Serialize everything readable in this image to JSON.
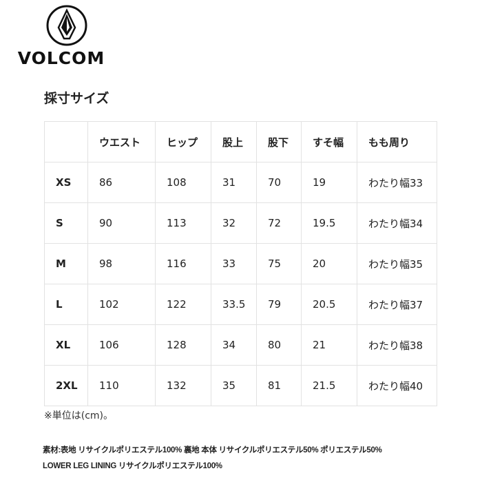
{
  "brand": {
    "name": "VOLCOM"
  },
  "title": "採寸サイズ",
  "table": {
    "headers": [
      "",
      "ウエスト",
      "ヒップ",
      "股上",
      "股下",
      "すそ幅",
      "もも周り"
    ],
    "rows": [
      [
        "XS",
        "86",
        "108",
        "31",
        "70",
        "19",
        "わたり幅33"
      ],
      [
        "S",
        "90",
        "113",
        "32",
        "72",
        "19.5",
        "わたり幅34"
      ],
      [
        "M",
        "98",
        "116",
        "33",
        "75",
        "20",
        "わたり幅35"
      ],
      [
        "L",
        "102",
        "122",
        "33.5",
        "79",
        "20.5",
        "わたり幅37"
      ],
      [
        "XL",
        "106",
        "128",
        "34",
        "80",
        "21",
        "わたり幅38"
      ],
      [
        "2XL",
        "110",
        "132",
        "35",
        "81",
        "21.5",
        "わたり幅40"
      ]
    ]
  },
  "note": "※単位は(cm)。",
  "material": {
    "line1": "素材:表地 リサイクルポリエステル100% 裏地 本体 リサイクルポリエステル50% ポリエステル50%",
    "line2": "LOWER LEG LINING リサイクルポリエステル100%"
  }
}
